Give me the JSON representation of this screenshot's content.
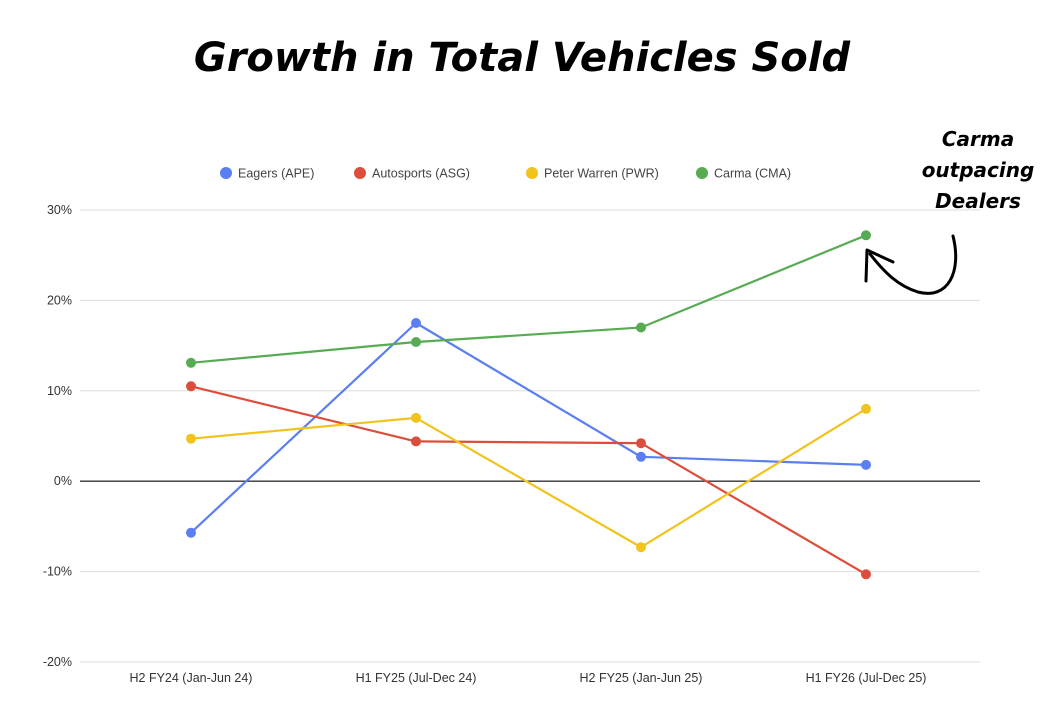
{
  "chart_data": {
    "type": "line",
    "title": "Growth in Total Vehicles Sold",
    "xlabel": "",
    "ylabel": "",
    "categories": [
      "H2 FY24 (Jan-Jun 24)",
      "H1 FY25 (Jul-Dec 24)",
      "H2 FY25 (Jan-Jun 25)",
      "H1 FY26 (Jul-Dec 25)"
    ],
    "ylim": [
      -20,
      30
    ],
    "yticks": [
      30,
      20,
      10,
      0,
      -10,
      -20
    ],
    "ytick_labels": [
      "30%",
      "20%",
      "10%",
      "0%",
      "-10%",
      "-20%"
    ],
    "grid": true,
    "legend_position": "top",
    "series": [
      {
        "name": "Eagers (APE)",
        "color": "#5b7ff0",
        "values": [
          -5.7,
          17.5,
          2.7,
          1.8
        ]
      },
      {
        "name": "Autosports (ASG)",
        "color": "#dc4e3b",
        "values": [
          10.5,
          4.4,
          4.2,
          -10.3
        ]
      },
      {
        "name": "Peter Warren (PWR)",
        "color": "#f2c21d",
        "values": [
          4.7,
          7.0,
          -7.3,
          8.0
        ]
      },
      {
        "name": "Carma (CMA)",
        "color": "#57ab52",
        "values": [
          13.1,
          15.4,
          17.0,
          27.2
        ]
      }
    ],
    "annotation": {
      "lines": [
        "Carma",
        "outpacing",
        "Dealers"
      ],
      "target_series": "Carma (CMA)",
      "target_index": 3
    }
  }
}
